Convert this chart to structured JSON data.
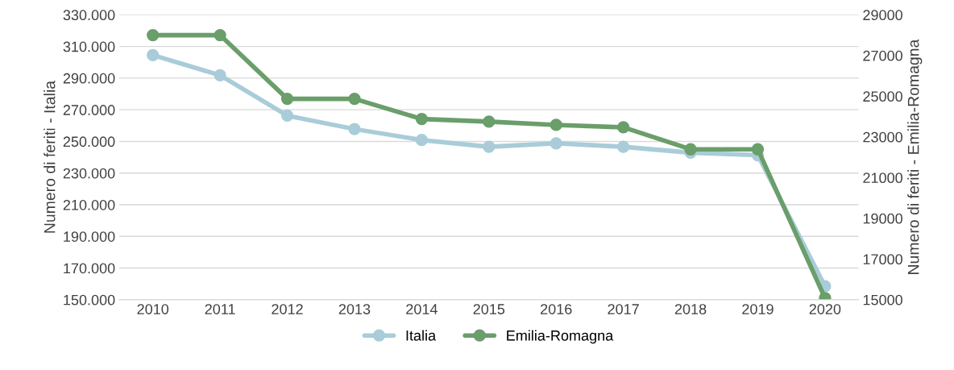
{
  "chart_data": {
    "type": "line",
    "categories": [
      "2010",
      "2011",
      "2012",
      "2013",
      "2014",
      "2015",
      "2016",
      "2017",
      "2018",
      "2019",
      "2020"
    ],
    "ylabel": "Numero di feriti - Italia",
    "y2label": "Numero di feriti - Emilia-Romagna",
    "series": [
      {
        "name": "Italia",
        "color": "#a9ccd8",
        "values": [
          304500,
          291800,
          266300,
          257800,
          250900,
          246600,
          248800,
          246600,
          242900,
          241300,
          158500
        ]
      },
      {
        "name": "Emilia-Romagna",
        "color": "#6a9e6a",
        "axis": "y2",
        "values": [
          28000,
          28000,
          24870,
          24870,
          23880,
          23750,
          23590,
          23470,
          22390,
          22390,
          15080
        ]
      }
    ],
    "ylim": [
      150000,
      330000
    ],
    "yticks": [
      {
        "value": 150000,
        "label": "150.000"
      },
      {
        "value": 170000,
        "label": "170.000"
      },
      {
        "value": 190000,
        "label": "190.000"
      },
      {
        "value": 210000,
        "label": "210.000"
      },
      {
        "value": 230000,
        "label": "230.000"
      },
      {
        "value": 250000,
        "label": "250.000"
      },
      {
        "value": 270000,
        "label": "270.000"
      },
      {
        "value": 290000,
        "label": "290.000"
      },
      {
        "value": 310000,
        "label": "310.000"
      },
      {
        "value": 330000,
        "label": "330.000"
      }
    ],
    "y2lim": [
      15000,
      29000
    ],
    "y2ticks": [
      15000,
      17000,
      19000,
      21000,
      23000,
      25000,
      27000,
      29000
    ],
    "grid": "y",
    "legend": "bottom",
    "marker": "circle",
    "line_style": "solid"
  }
}
